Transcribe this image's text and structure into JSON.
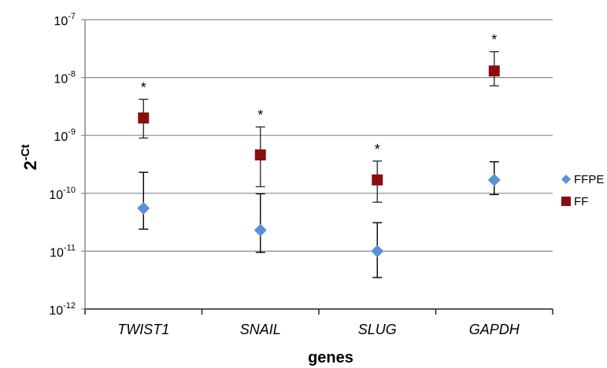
{
  "chart_data": {
    "type": "scatter",
    "title": "",
    "xlabel": "genes",
    "ylabel": {
      "base": "2",
      "exponent": "-Ct"
    },
    "y_scale": "log",
    "ylim": [
      1e-12,
      1e-07
    ],
    "y_ticks": [
      {
        "value": 1e-12,
        "base": "10",
        "exp": "-12"
      },
      {
        "value": 1e-11,
        "base": "10",
        "exp": "-11"
      },
      {
        "value": 1e-10,
        "base": "10",
        "exp": "-10"
      },
      {
        "value": 1e-09,
        "base": "10",
        "exp": "-9"
      },
      {
        "value": 1e-08,
        "base": "10",
        "exp": "-8"
      },
      {
        "value": 1e-07,
        "base": "10",
        "exp": "-7"
      }
    ],
    "grid": true,
    "legend_position": "right",
    "categories": [
      "TWIST1",
      "SNAIL",
      "SLUG",
      "GAPDH"
    ],
    "series": [
      {
        "name": "FFPE",
        "marker": "diamond",
        "color": "#5b8fd6",
        "values": [
          5.5e-11,
          2.3e-11,
          1e-11,
          1.7e-10
        ],
        "err_low": [
          2.4e-11,
          9.5e-12,
          3.5e-12,
          9.5e-11
        ],
        "err_high": [
          2.3e-10,
          9.8e-11,
          3.1e-11,
          3.5e-10
        ]
      },
      {
        "name": "FF",
        "marker": "square",
        "color": "#8b0e0e",
        "values": [
          2e-09,
          4.6e-10,
          1.7e-10,
          1.3e-08
        ],
        "err_low": [
          9e-10,
          1.3e-10,
          7e-11,
          7.2e-09
        ],
        "err_high": [
          4.2e-09,
          1.4e-09,
          3.6e-10,
          2.8e-08
        ]
      }
    ],
    "annotations": [
      {
        "category": "TWIST1",
        "text": "*"
      },
      {
        "category": "SNAIL",
        "text": "*"
      },
      {
        "category": "SLUG",
        "text": "*"
      },
      {
        "category": "GAPDH",
        "text": "*"
      }
    ]
  }
}
